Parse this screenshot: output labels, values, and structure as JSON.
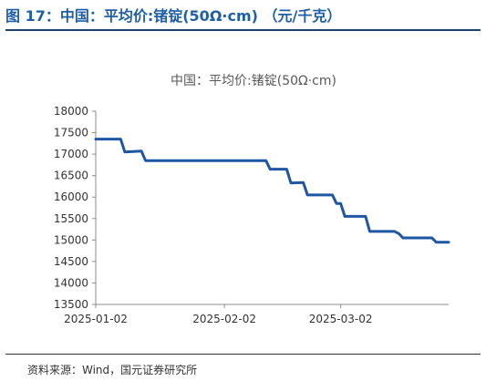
{
  "figure": {
    "title": "图 17：中国：平均价:锗锭(50Ω·cm) （元/千克）",
    "source": "资料来源：Wind，国元证券研究所"
  },
  "colors": {
    "title": "#1f5fa8",
    "line": "#1f56a3",
    "rule": "#1f3f6e"
  },
  "chart_data": {
    "type": "line",
    "title": "中国：平均价:锗锭(50Ω·cm)",
    "xlabel": "",
    "ylabel": "",
    "ylim": [
      13500,
      18000
    ],
    "yticks": [
      13500,
      14000,
      14500,
      15000,
      15500,
      16000,
      16500,
      17000,
      17500,
      18000
    ],
    "xlim": [
      "2025-01-02",
      "2025-03-28"
    ],
    "xticks": [
      "2025-01-02",
      "2025-02-02",
      "2025-03-02"
    ],
    "grid": false,
    "series": [
      {
        "name": "",
        "points": [
          [
            "2025-01-02",
            17350
          ],
          [
            "2025-01-08",
            17350
          ],
          [
            "2025-01-09",
            17050
          ],
          [
            "2025-01-13",
            17070
          ],
          [
            "2025-01-14",
            16850
          ],
          [
            "2025-01-15",
            16850
          ],
          [
            "2025-02-12",
            16850
          ],
          [
            "2025-02-13",
            16650
          ],
          [
            "2025-02-17",
            16650
          ],
          [
            "2025-02-18",
            16330
          ],
          [
            "2025-02-21",
            16340
          ],
          [
            "2025-02-22",
            16050
          ],
          [
            "2025-02-28",
            16050
          ],
          [
            "2025-03-01",
            15850
          ],
          [
            "2025-03-02",
            15850
          ],
          [
            "2025-03-03",
            15550
          ],
          [
            "2025-03-08",
            15550
          ],
          [
            "2025-03-09",
            15200
          ],
          [
            "2025-03-15",
            15200
          ],
          [
            "2025-03-16",
            15150
          ],
          [
            "2025-03-17",
            15050
          ],
          [
            "2025-03-24",
            15050
          ],
          [
            "2025-03-25",
            14950
          ],
          [
            "2025-03-28",
            14950
          ]
        ]
      }
    ]
  }
}
